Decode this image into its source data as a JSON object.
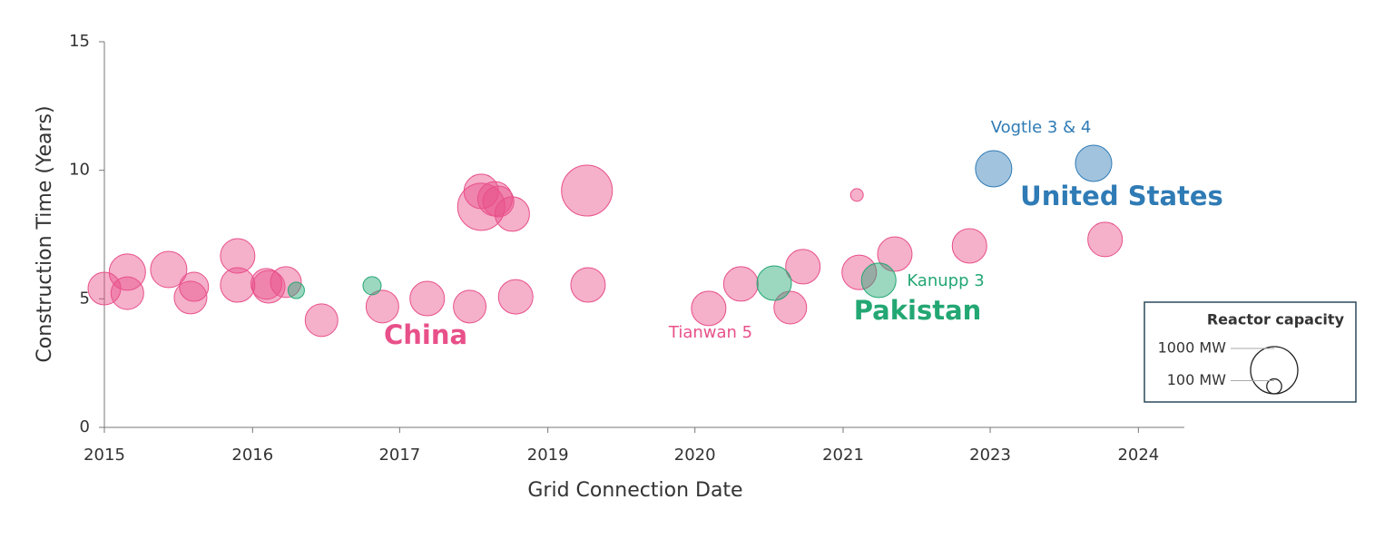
{
  "chart_data": {
    "type": "scatter",
    "x_label": "Grid Connection Date",
    "y_label": "Construction Time (Years)",
    "xlim": [
      2015,
      2024.4
    ],
    "xticks": [
      2015,
      {
        "value": 2016.29,
        "label": "2016"
      },
      {
        "value": 2017.57,
        "label": "2017"
      },
      {
        "value": 2018.86,
        "label": "2019"
      },
      {
        "value": 2020.14,
        "label": "2020"
      },
      {
        "value": 2021.43,
        "label": "2021"
      },
      {
        "value": 2022.71,
        "label": "2023"
      },
      {
        "value": 2024,
        "label": "2024"
      }
    ],
    "ylim": [
      0,
      15
    ],
    "yticks": [
      0,
      5,
      10,
      15
    ],
    "grid": false,
    "series": [
      {
        "name": "China",
        "color": "#e8508a",
        "x": [
          2015.0,
          2015.2,
          2015.2,
          2015.56,
          2015.75,
          2015.78,
          2016.16,
          2016.16,
          2016.41,
          2016.43,
          2016.58,
          2016.89,
          2017.42,
          2017.81,
          2018.18,
          2018.28,
          2018.28,
          2018.4,
          2018.43,
          2018.55,
          2018.58,
          2019.2,
          2019.21,
          2020.26,
          2020.54,
          2020.97,
          2021.08,
          2021.55,
          2021.57,
          2021.88,
          2022.53,
          2023.71
        ],
        "values": [
          5.4,
          6.04,
          5.22,
          6.14,
          5.05,
          5.47,
          6.67,
          5.54,
          5.58,
          5.47,
          5.65,
          4.17,
          4.7,
          5.01,
          4.7,
          9.18,
          8.58,
          8.89,
          8.79,
          8.3,
          5.08,
          9.21,
          5.54,
          4.63,
          5.58,
          4.66,
          6.25,
          9.04,
          6.03,
          6.74,
          7.06,
          7.31
        ],
        "sizes": [
          479,
          592,
          479,
          592,
          479,
          379,
          534,
          534,
          428,
          479,
          428,
          479,
          479,
          534,
          479,
          534,
          1000,
          534,
          428,
          534,
          534,
          1160,
          534,
          534,
          534,
          479,
          534,
          72,
          534,
          534,
          534,
          534
        ]
      },
      {
        "name": "Pakistan",
        "color": "#23a773",
        "x": [
          2016.67,
          2017.33,
          2020.83,
          2021.74
        ],
        "values": [
          5.33,
          5.51,
          5.61,
          5.72
        ],
        "sizes": [
          120,
          148,
          534,
          534
        ]
      },
      {
        "name": "United States",
        "color": "#2f7bb5",
        "x": [
          2022.74,
          2023.61
        ],
        "values": [
          10.06,
          10.27
        ],
        "sizes": [
          592,
          592
        ]
      }
    ],
    "annotations": [
      "Vogtle 3 & 4",
      "Tianwan 5",
      "Kanupp 3"
    ],
    "size_legend": {
      "title": "Reactor capacity",
      "values": [
        1000,
        100
      ],
      "labels": [
        "1000 MW",
        "100 MW"
      ]
    }
  }
}
